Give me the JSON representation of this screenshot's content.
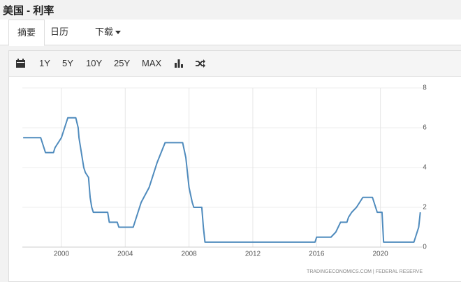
{
  "header": {
    "title": "美国 - 利率"
  },
  "tabs": [
    "摘要",
    "日历",
    "下载"
  ],
  "toolbar": {
    "ranges": [
      "1Y",
      "5Y",
      "10Y",
      "25Y",
      "MAX"
    ]
  },
  "chart_data": {
    "type": "line",
    "source": "TRADINGECONOMICS.COM  |  FEDERAL RESERVE",
    "x": [
      1997.6,
      1998.7,
      1998.8,
      1998.9,
      1999.0,
      1999.5,
      1999.6,
      1999.8,
      2000.0,
      2000.2,
      2000.4,
      2000.9,
      2001.05,
      2001.1,
      2001.2,
      2001.3,
      2001.4,
      2001.5,
      2001.7,
      2001.8,
      2001.9,
      2002.0,
      2002.9,
      2003.0,
      2003.5,
      2003.6,
      2004.5,
      2004.7,
      2005.0,
      2005.5,
      2006.0,
      2006.5,
      2007.6,
      2007.8,
      2008.0,
      2008.2,
      2008.3,
      2008.8,
      2008.9,
      2009.0,
      2015.9,
      2016.0,
      2016.9,
      2017.2,
      2017.5,
      2017.9,
      2018.0,
      2018.2,
      2018.5,
      2018.7,
      2018.9,
      2019.5,
      2019.6,
      2019.7,
      2019.8,
      2020.1,
      2020.2,
      2022.1,
      2022.2,
      2022.4,
      2022.5
    ],
    "series": [
      {
        "name": "利率",
        "color": "#4f8bbd",
        "values": [
          5.5,
          5.5,
          5.25,
          5.0,
          4.75,
          4.75,
          5.0,
          5.25,
          5.5,
          6.0,
          6.5,
          6.5,
          6.0,
          5.5,
          5.0,
          4.5,
          4.0,
          3.75,
          3.5,
          2.5,
          2.0,
          1.75,
          1.75,
          1.25,
          1.25,
          1.0,
          1.0,
          1.5,
          2.25,
          3.0,
          4.25,
          5.25,
          5.25,
          4.5,
          3.0,
          2.25,
          2.0,
          2.0,
          1.0,
          0.25,
          0.25,
          0.5,
          0.5,
          0.75,
          1.25,
          1.25,
          1.5,
          1.75,
          2.0,
          2.25,
          2.5,
          2.5,
          2.25,
          2.0,
          1.75,
          1.75,
          0.25,
          0.25,
          0.5,
          1.0,
          1.75
        ]
      }
    ],
    "xlim": [
      1997.55,
      2022.6
    ],
    "xticks": [
      2000,
      2004,
      2008,
      2012,
      2016,
      2020
    ],
    "ylim": [
      0,
      8
    ],
    "yticks": [
      0,
      2,
      4,
      6,
      8
    ],
    "grid": true
  }
}
